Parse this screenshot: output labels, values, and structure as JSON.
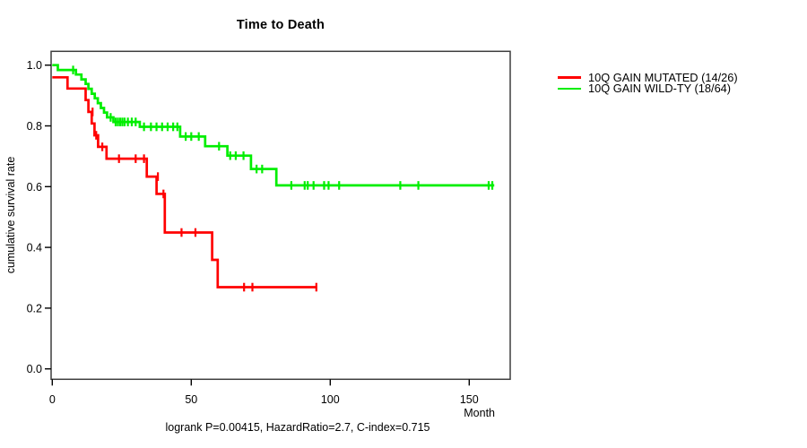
{
  "chart_data": {
    "type": "line",
    "subtype": "kaplan-meier-step",
    "title": "Time to Death",
    "xlabel": "Month",
    "ylabel": "cumulative survival rate",
    "annotation": "logrank P=0.00415, HazardRatio=2.7, C-index=0.715",
    "xlim": [
      0,
      165
    ],
    "ylim": [
      0.0,
      1.0
    ],
    "xticks": [
      0,
      50,
      100,
      150
    ],
    "yticks": [
      "0.0",
      "0.2",
      "0.4",
      "0.6",
      "0.8",
      "1.0"
    ],
    "grid": false,
    "legend_position": "right-outside",
    "frame_color": "#3d3d3d",
    "series": [
      {
        "name": "10Q GAIN MUTATED (14/26)",
        "color": "#ff0000",
        "steps": [
          [
            0,
            0.96
          ],
          [
            5.5,
            0.96
          ],
          [
            5.5,
            0.923
          ],
          [
            12,
            0.923
          ],
          [
            12,
            0.885
          ],
          [
            13,
            0.885
          ],
          [
            13,
            0.846
          ],
          [
            14.2,
            0.846
          ],
          [
            14.2,
            0.808
          ],
          [
            15.2,
            0.808
          ],
          [
            15.2,
            0.769
          ],
          [
            16.5,
            0.769
          ],
          [
            16.5,
            0.731
          ],
          [
            19.5,
            0.731
          ],
          [
            19.5,
            0.692
          ],
          [
            34,
            0.692
          ],
          [
            34,
            0.633
          ],
          [
            37.5,
            0.633
          ],
          [
            37.5,
            0.576
          ],
          [
            40.5,
            0.576
          ],
          [
            40.5,
            0.449
          ],
          [
            57.5,
            0.449
          ],
          [
            57.5,
            0.359
          ],
          [
            59.5,
            0.359
          ],
          [
            59.5,
            0.269
          ],
          [
            95,
            0.269
          ]
        ],
        "censors": [
          [
            14.5,
            0.846
          ],
          [
            15.8,
            0.769
          ],
          [
            18,
            0.731
          ],
          [
            24,
            0.692
          ],
          [
            30,
            0.692
          ],
          [
            33,
            0.692
          ],
          [
            38,
            0.633
          ],
          [
            40,
            0.576
          ],
          [
            46.5,
            0.449
          ],
          [
            51.5,
            0.449
          ],
          [
            69,
            0.269
          ],
          [
            72,
            0.269
          ],
          [
            95,
            0.269
          ]
        ]
      },
      {
        "name": "10Q GAIN WILD-TY (18/64)",
        "color": "#00ee00",
        "steps": [
          [
            0,
            1.0
          ],
          [
            2,
            1.0
          ],
          [
            2,
            0.984
          ],
          [
            8.5,
            0.984
          ],
          [
            8.5,
            0.969
          ],
          [
            10.5,
            0.969
          ],
          [
            10.5,
            0.953
          ],
          [
            12,
            0.953
          ],
          [
            12,
            0.938
          ],
          [
            13,
            0.938
          ],
          [
            13,
            0.922
          ],
          [
            14.2,
            0.922
          ],
          [
            14.2,
            0.906
          ],
          [
            15.3,
            0.906
          ],
          [
            15.3,
            0.891
          ],
          [
            16.4,
            0.891
          ],
          [
            16.4,
            0.875
          ],
          [
            17.5,
            0.875
          ],
          [
            17.5,
            0.859
          ],
          [
            18.6,
            0.859
          ],
          [
            18.6,
            0.844
          ],
          [
            19.7,
            0.844
          ],
          [
            19.7,
            0.828
          ],
          [
            22,
            0.828
          ],
          [
            22,
            0.813
          ],
          [
            31.5,
            0.813
          ],
          [
            31.5,
            0.797
          ],
          [
            46,
            0.797
          ],
          [
            46,
            0.765
          ],
          [
            55,
            0.765
          ],
          [
            55,
            0.733
          ],
          [
            63,
            0.733
          ],
          [
            63,
            0.702
          ],
          [
            71.5,
            0.702
          ],
          [
            71.5,
            0.658
          ],
          [
            80.6,
            0.658
          ],
          [
            80.6,
            0.604
          ],
          [
            159,
            0.604
          ]
        ],
        "censors": [
          [
            7.5,
            0.984
          ],
          [
            21,
            0.828
          ],
          [
            22.8,
            0.813
          ],
          [
            23.6,
            0.813
          ],
          [
            24.4,
            0.813
          ],
          [
            25.2,
            0.813
          ],
          [
            26,
            0.813
          ],
          [
            27.2,
            0.813
          ],
          [
            28.6,
            0.813
          ],
          [
            30,
            0.813
          ],
          [
            33,
            0.797
          ],
          [
            35.5,
            0.797
          ],
          [
            37.5,
            0.797
          ],
          [
            39.5,
            0.797
          ],
          [
            41.5,
            0.797
          ],
          [
            43.5,
            0.797
          ],
          [
            45,
            0.797
          ],
          [
            48,
            0.765
          ],
          [
            50,
            0.765
          ],
          [
            52.7,
            0.765
          ],
          [
            60,
            0.733
          ],
          [
            64,
            0.702
          ],
          [
            66,
            0.702
          ],
          [
            68.8,
            0.702
          ],
          [
            73.5,
            0.658
          ],
          [
            75.5,
            0.658
          ],
          [
            86,
            0.604
          ],
          [
            90.8,
            0.604
          ],
          [
            91.9,
            0.604
          ],
          [
            94,
            0.604
          ],
          [
            97.8,
            0.604
          ],
          [
            99.4,
            0.604
          ],
          [
            103.2,
            0.604
          ],
          [
            125.2,
            0.604
          ],
          [
            131.7,
            0.604
          ],
          [
            157,
            0.604
          ],
          [
            158.3,
            0.604
          ]
        ]
      }
    ]
  }
}
